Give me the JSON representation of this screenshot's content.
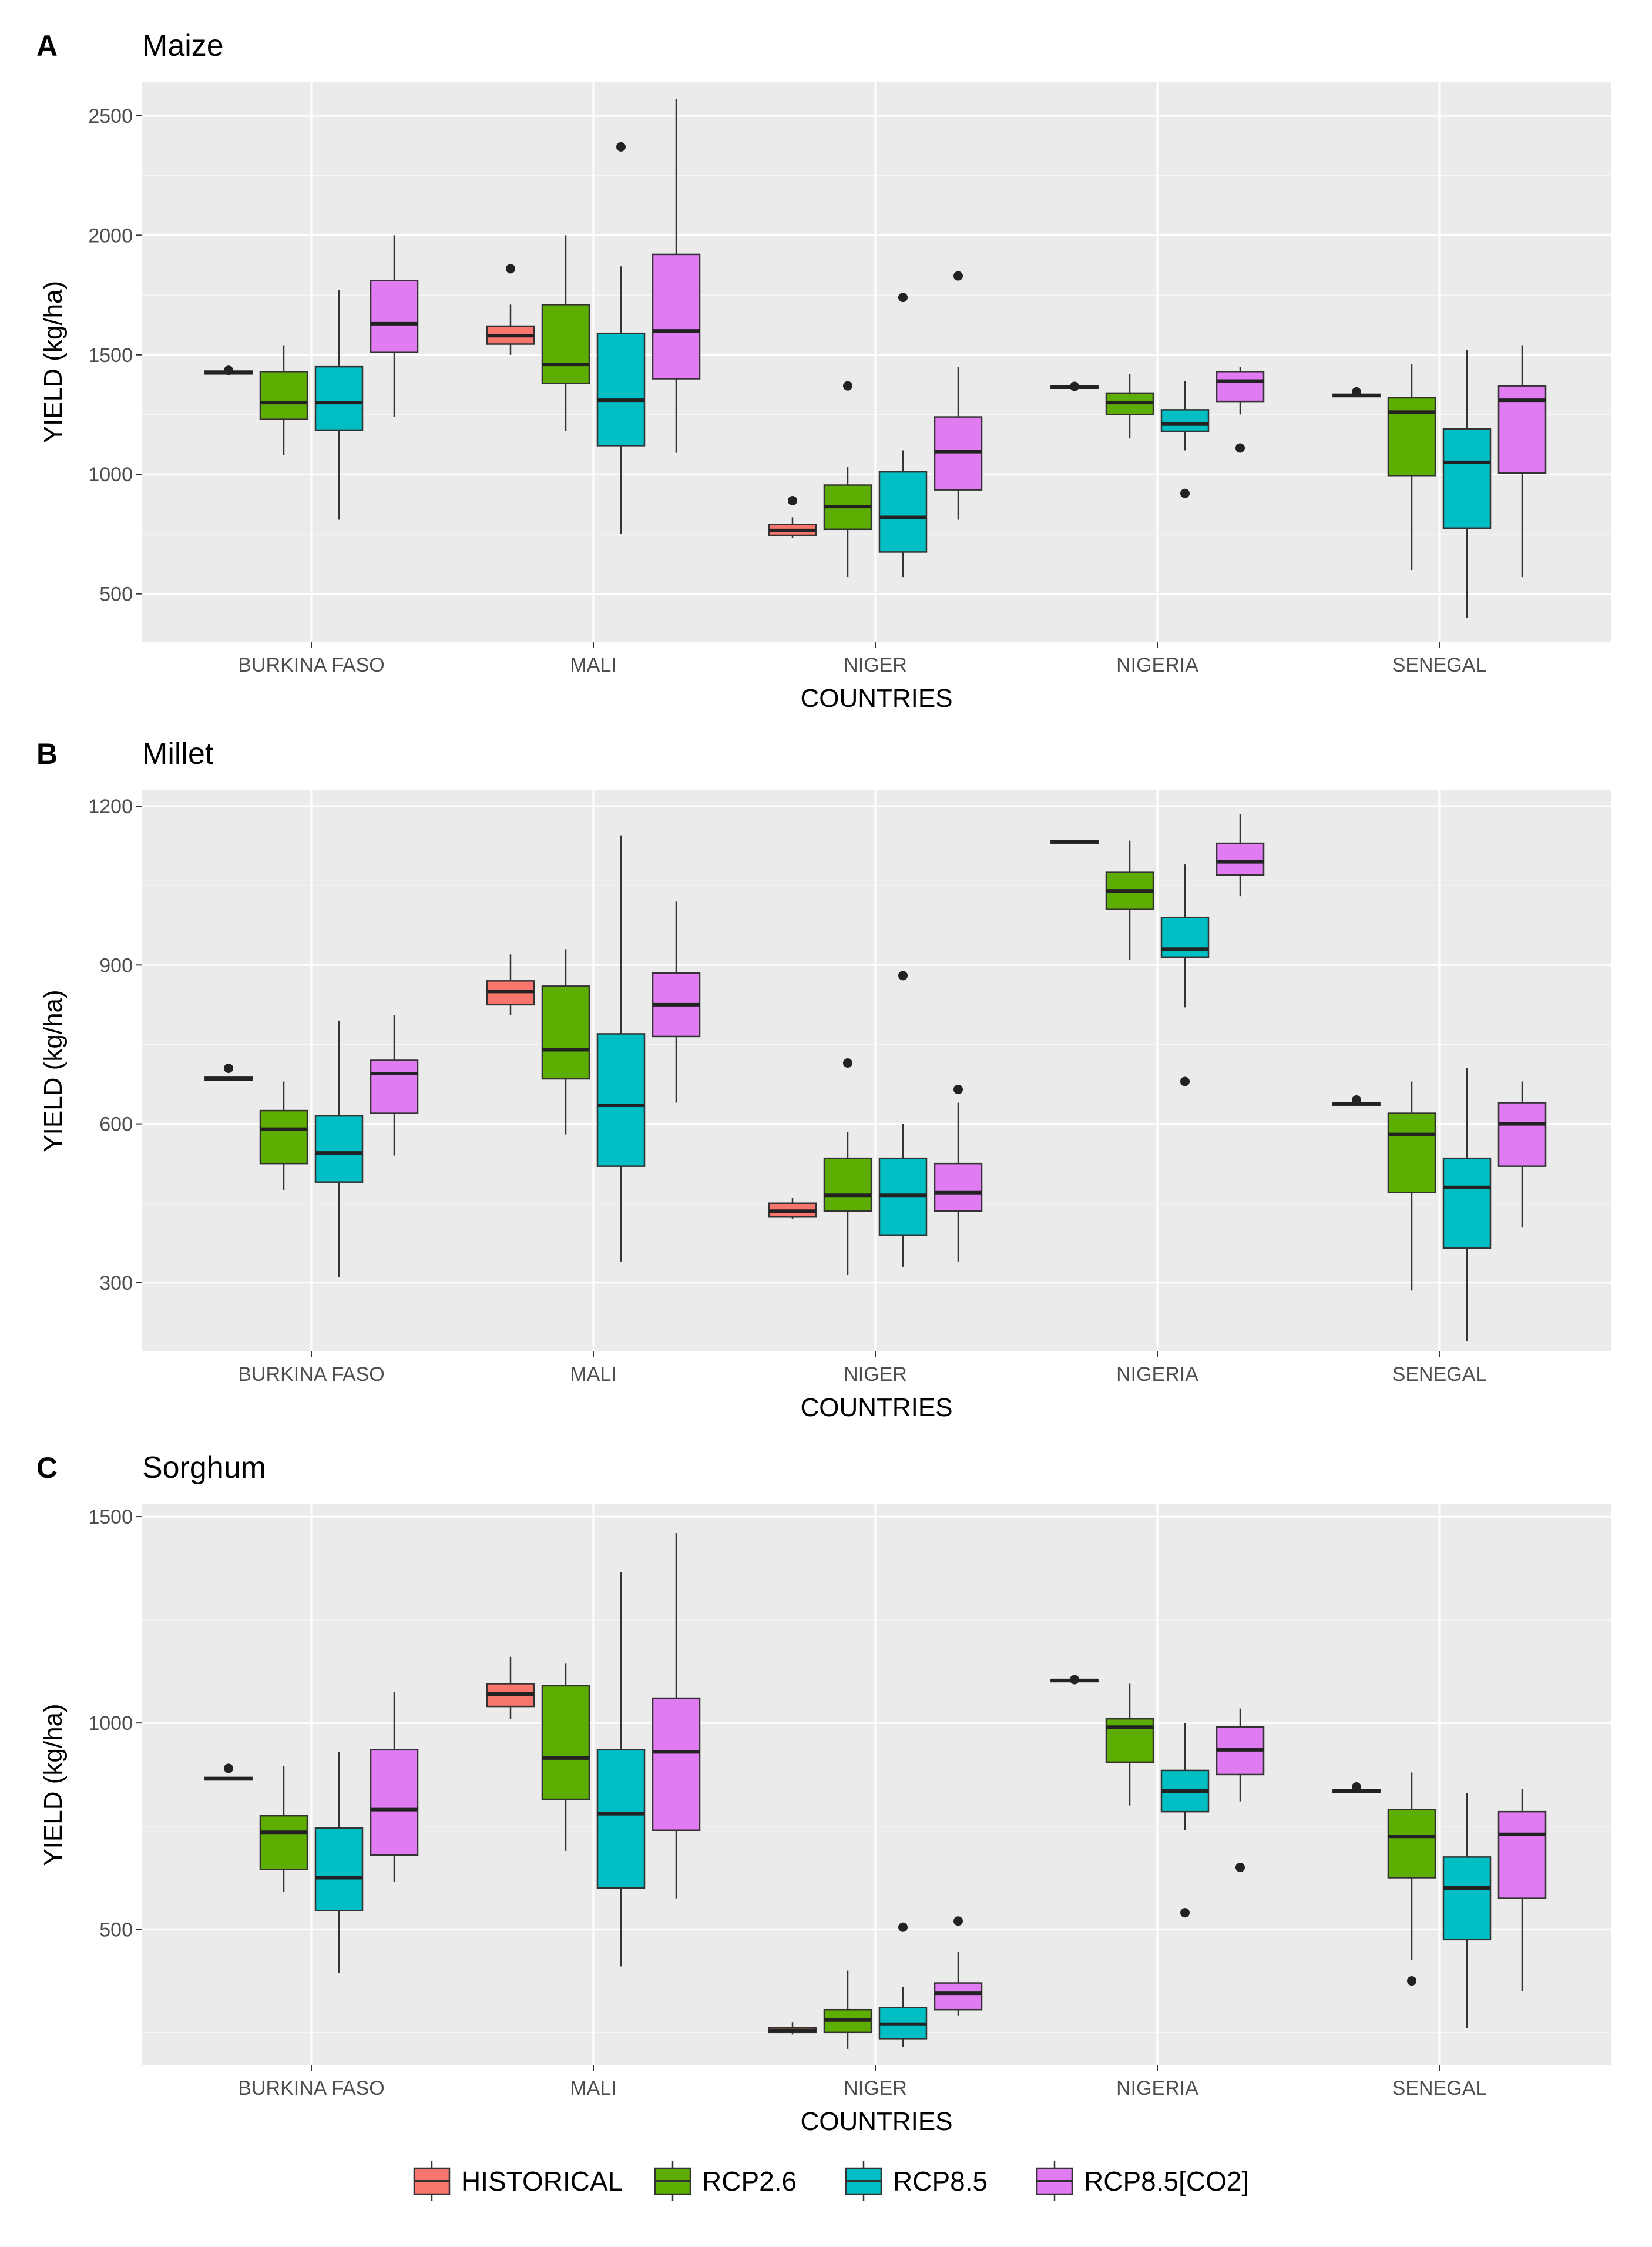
{
  "legend": {
    "items": [
      {
        "name": "HISTORICAL",
        "color": "#F8766D"
      },
      {
        "name": "RCP2.6",
        "color": "#5DAE00"
      },
      {
        "name": "RCP8.5",
        "color": "#00BFC4"
      },
      {
        "name": "RCP8.5[CO2]",
        "color": "#E07BF2"
      }
    ]
  },
  "chart_data": [
    {
      "type": "boxplot",
      "panel": "A",
      "title": "Maize",
      "xlabel": "COUNTRIES",
      "ylabel": "YIELD (kg/ha)",
      "ylim": [
        300,
        2640
      ],
      "yticks": [
        500,
        1000,
        1500,
        2000,
        2500
      ],
      "categories": [
        "BURKINA FASO",
        "MALI",
        "NIGER",
        "NIGERIA",
        "SENEGAL"
      ],
      "series": [
        {
          "name": "HISTORICAL",
          "boxes": [
            {
              "min": 1420,
              "q1": 1420,
              "median": 1425,
              "q3": 1432,
              "max": 1432,
              "outliers": [
                1435
              ]
            },
            {
              "min": 1500,
              "q1": 1545,
              "median": 1580,
              "q3": 1620,
              "max": 1710,
              "outliers": [
                1860
              ]
            },
            {
              "min": 735,
              "q1": 745,
              "median": 765,
              "q3": 790,
              "max": 820,
              "outliers": [
                890
              ]
            },
            {
              "min": 1360,
              "q1": 1360,
              "median": 1365,
              "q3": 1370,
              "max": 1370,
              "outliers": [
                1368
              ]
            },
            {
              "min": 1325,
              "q1": 1325,
              "median": 1330,
              "q3": 1335,
              "max": 1335,
              "outliers": [
                1345
              ]
            }
          ]
        },
        {
          "name": "RCP2.6",
          "boxes": [
            {
              "min": 1080,
              "q1": 1230,
              "median": 1300,
              "q3": 1430,
              "max": 1540,
              "outliers": []
            },
            {
              "min": 1180,
              "q1": 1380,
              "median": 1460,
              "q3": 1710,
              "max": 2000,
              "outliers": []
            },
            {
              "min": 570,
              "q1": 770,
              "median": 865,
              "q3": 955,
              "max": 1030,
              "outliers": [
                1370
              ]
            },
            {
              "min": 1150,
              "q1": 1250,
              "median": 1300,
              "q3": 1340,
              "max": 1420,
              "outliers": []
            },
            {
              "min": 600,
              "q1": 995,
              "median": 1260,
              "q3": 1320,
              "max": 1460,
              "outliers": []
            }
          ]
        },
        {
          "name": "RCP8.5",
          "boxes": [
            {
              "min": 810,
              "q1": 1185,
              "median": 1300,
              "q3": 1450,
              "max": 1770,
              "outliers": []
            },
            {
              "min": 750,
              "q1": 1120,
              "median": 1310,
              "q3": 1590,
              "max": 1870,
              "outliers": [
                2370
              ]
            },
            {
              "min": 570,
              "q1": 675,
              "median": 820,
              "q3": 1010,
              "max": 1100,
              "outliers": [
                1740
              ]
            },
            {
              "min": 1100,
              "q1": 1180,
              "median": 1210,
              "q3": 1270,
              "max": 1390,
              "outliers": [
                920
              ]
            },
            {
              "min": 400,
              "q1": 775,
              "median": 1050,
              "q3": 1190,
              "max": 1520,
              "outliers": []
            }
          ]
        },
        {
          "name": "RCP8.5[CO2]",
          "boxes": [
            {
              "min": 1240,
              "q1": 1510,
              "median": 1630,
              "q3": 1810,
              "max": 2000,
              "outliers": []
            },
            {
              "min": 1090,
              "q1": 1400,
              "median": 1600,
              "q3": 1920,
              "max": 2570,
              "outliers": []
            },
            {
              "min": 810,
              "q1": 935,
              "median": 1095,
              "q3": 1240,
              "max": 1450,
              "outliers": [
                1830
              ]
            },
            {
              "min": 1250,
              "q1": 1305,
              "median": 1390,
              "q3": 1430,
              "max": 1450,
              "outliers": [
                1110
              ]
            },
            {
              "min": 570,
              "q1": 1005,
              "median": 1310,
              "q3": 1370,
              "max": 1540,
              "outliers": []
            }
          ]
        }
      ]
    },
    {
      "type": "boxplot",
      "panel": "B",
      "title": "Millet",
      "xlabel": "COUNTRIES",
      "ylabel": "YIELD (kg/ha)",
      "ylim": [
        170,
        1230
      ],
      "yticks": [
        300,
        600,
        900,
        1200
      ],
      "categories": [
        "BURKINA FASO",
        "MALI",
        "NIGER",
        "NIGERIA",
        "SENEGAL"
      ],
      "series": [
        {
          "name": "HISTORICAL",
          "boxes": [
            {
              "min": 683,
              "q1": 683,
              "median": 685,
              "q3": 688,
              "max": 688,
              "outliers": [
                705
              ]
            },
            {
              "min": 805,
              "q1": 825,
              "median": 850,
              "q3": 870,
              "max": 920,
              "outliers": []
            },
            {
              "min": 420,
              "q1": 425,
              "median": 435,
              "q3": 450,
              "max": 460,
              "outliers": []
            },
            {
              "min": 1130,
              "q1": 1130,
              "median": 1133,
              "q3": 1135,
              "max": 1135,
              "outliers": []
            },
            {
              "min": 635,
              "q1": 635,
              "median": 638,
              "q3": 640,
              "max": 640,
              "outliers": [
                645
              ]
            }
          ]
        },
        {
          "name": "RCP2.6",
          "boxes": [
            {
              "min": 475,
              "q1": 525,
              "median": 590,
              "q3": 625,
              "max": 680,
              "outliers": []
            },
            {
              "min": 580,
              "q1": 685,
              "median": 740,
              "q3": 860,
              "max": 930,
              "outliers": []
            },
            {
              "min": 315,
              "q1": 435,
              "median": 465,
              "q3": 535,
              "max": 585,
              "outliers": [
                715
              ]
            },
            {
              "min": 910,
              "q1": 1005,
              "median": 1040,
              "q3": 1075,
              "max": 1135,
              "outliers": []
            },
            {
              "min": 285,
              "q1": 470,
              "median": 580,
              "q3": 620,
              "max": 680,
              "outliers": []
            }
          ]
        },
        {
          "name": "RCP8.5",
          "boxes": [
            {
              "min": 310,
              "q1": 490,
              "median": 545,
              "q3": 615,
              "max": 795,
              "outliers": []
            },
            {
              "min": 340,
              "q1": 520,
              "median": 635,
              "q3": 770,
              "max": 1145,
              "outliers": []
            },
            {
              "min": 330,
              "q1": 390,
              "median": 465,
              "q3": 535,
              "max": 600,
              "outliers": [
                880
              ]
            },
            {
              "min": 820,
              "q1": 915,
              "median": 930,
              "q3": 990,
              "max": 1090,
              "outliers": [
                680
              ]
            },
            {
              "min": 190,
              "q1": 365,
              "median": 480,
              "q3": 535,
              "max": 705,
              "outliers": []
            }
          ]
        },
        {
          "name": "RCP8.5[CO2]",
          "boxes": [
            {
              "min": 540,
              "q1": 620,
              "median": 695,
              "q3": 720,
              "max": 805,
              "outliers": []
            },
            {
              "min": 640,
              "q1": 765,
              "median": 825,
              "q3": 885,
              "max": 1020,
              "outliers": []
            },
            {
              "min": 340,
              "q1": 435,
              "median": 470,
              "q3": 525,
              "max": 640,
              "outliers": [
                665
              ]
            },
            {
              "min": 1030,
              "q1": 1070,
              "median": 1095,
              "q3": 1130,
              "max": 1185,
              "outliers": []
            },
            {
              "min": 405,
              "q1": 520,
              "median": 600,
              "q3": 640,
              "max": 680,
              "outliers": []
            }
          ]
        }
      ]
    },
    {
      "type": "boxplot",
      "panel": "C",
      "title": "Sorghum",
      "xlabel": "COUNTRIES",
      "ylabel": "YIELD (kg/ha)",
      "ylim": [
        170,
        1530
      ],
      "yticks": [
        500,
        1000,
        1500
      ],
      "categories": [
        "BURKINA FASO",
        "MALI",
        "NIGER",
        "NIGERIA",
        "SENEGAL"
      ],
      "series": [
        {
          "name": "HISTORICAL",
          "boxes": [
            {
              "min": 862,
              "q1": 862,
              "median": 865,
              "q3": 868,
              "max": 868,
              "outliers": [
                890
              ]
            },
            {
              "min": 1010,
              "q1": 1040,
              "median": 1070,
              "q3": 1095,
              "max": 1160,
              "outliers": []
            },
            {
              "min": 245,
              "q1": 250,
              "median": 255,
              "q3": 262,
              "max": 275,
              "outliers": []
            },
            {
              "min": 1100,
              "q1": 1100,
              "median": 1103,
              "q3": 1105,
              "max": 1105,
              "outliers": [
                1105
              ]
            },
            {
              "min": 832,
              "q1": 832,
              "median": 835,
              "q3": 838,
              "max": 838,
              "outliers": [
                845
              ]
            }
          ]
        },
        {
          "name": "RCP2.6",
          "boxes": [
            {
              "min": 590,
              "q1": 645,
              "median": 735,
              "q3": 775,
              "max": 895,
              "outliers": []
            },
            {
              "min": 690,
              "q1": 815,
              "median": 915,
              "q3": 1090,
              "max": 1145,
              "outliers": []
            },
            {
              "min": 210,
              "q1": 250,
              "median": 280,
              "q3": 305,
              "max": 400,
              "outliers": []
            },
            {
              "min": 800,
              "q1": 905,
              "median": 990,
              "q3": 1010,
              "max": 1095,
              "outliers": []
            },
            {
              "min": 425,
              "q1": 625,
              "median": 725,
              "q3": 790,
              "max": 880,
              "outliers": [
                375
              ]
            }
          ]
        },
        {
          "name": "RCP8.5",
          "boxes": [
            {
              "min": 395,
              "q1": 545,
              "median": 625,
              "q3": 745,
              "max": 930,
              "outliers": []
            },
            {
              "min": 410,
              "q1": 600,
              "median": 780,
              "q3": 935,
              "max": 1365,
              "outliers": []
            },
            {
              "min": 215,
              "q1": 235,
              "median": 270,
              "q3": 310,
              "max": 360,
              "outliers": [
                505
              ]
            },
            {
              "min": 740,
              "q1": 785,
              "median": 835,
              "q3": 885,
              "max": 1000,
              "outliers": [
                540
              ]
            },
            {
              "min": 260,
              "q1": 475,
              "median": 600,
              "q3": 675,
              "max": 830,
              "outliers": []
            }
          ]
        },
        {
          "name": "RCP8.5[CO2]",
          "boxes": [
            {
              "min": 615,
              "q1": 680,
              "median": 790,
              "q3": 935,
              "max": 1075,
              "outliers": []
            },
            {
              "min": 575,
              "q1": 740,
              "median": 930,
              "q3": 1060,
              "max": 1460,
              "outliers": []
            },
            {
              "min": 290,
              "q1": 305,
              "median": 345,
              "q3": 370,
              "max": 445,
              "outliers": [
                520
              ]
            },
            {
              "min": 810,
              "q1": 875,
              "median": 935,
              "q3": 990,
              "max": 1035,
              "outliers": [
                650
              ]
            },
            {
              "min": 350,
              "q1": 575,
              "median": 730,
              "q3": 785,
              "max": 840,
              "outliers": []
            }
          ]
        }
      ]
    }
  ]
}
